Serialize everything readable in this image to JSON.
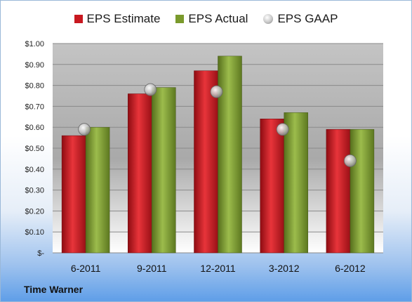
{
  "colors": {
    "estimate": "#c81820",
    "actual": "#7a9a2c",
    "gaap": "#c8c8c8"
  },
  "legend": {
    "estimate_label": "EPS Estimate",
    "actual_label": "EPS Actual",
    "gaap_label": "EPS GAAP"
  },
  "footer": {
    "company": "Time Warner"
  },
  "chart_data": {
    "type": "bar",
    "categories": [
      "6-2011",
      "9-2011",
      "12-2011",
      "3-2012",
      "6-2012"
    ],
    "series": [
      {
        "name": "EPS Estimate",
        "type": "bar",
        "values": [
          0.56,
          0.76,
          0.87,
          0.64,
          0.59
        ]
      },
      {
        "name": "EPS Actual",
        "type": "bar",
        "values": [
          0.6,
          0.79,
          0.94,
          0.67,
          0.59
        ]
      },
      {
        "name": "EPS GAAP",
        "type": "scatter",
        "values": [
          0.59,
          0.78,
          0.77,
          0.59,
          0.44
        ]
      }
    ],
    "y_ticks": [
      "$1.00",
      "$0.90",
      "$0.80",
      "$0.70",
      "$0.60",
      "$0.50",
      "$0.40",
      "$0.30",
      "$0.20",
      "$0.10",
      "$-"
    ],
    "ylim": [
      0,
      1.0
    ],
    "grid": true,
    "legend_position": "top"
  }
}
